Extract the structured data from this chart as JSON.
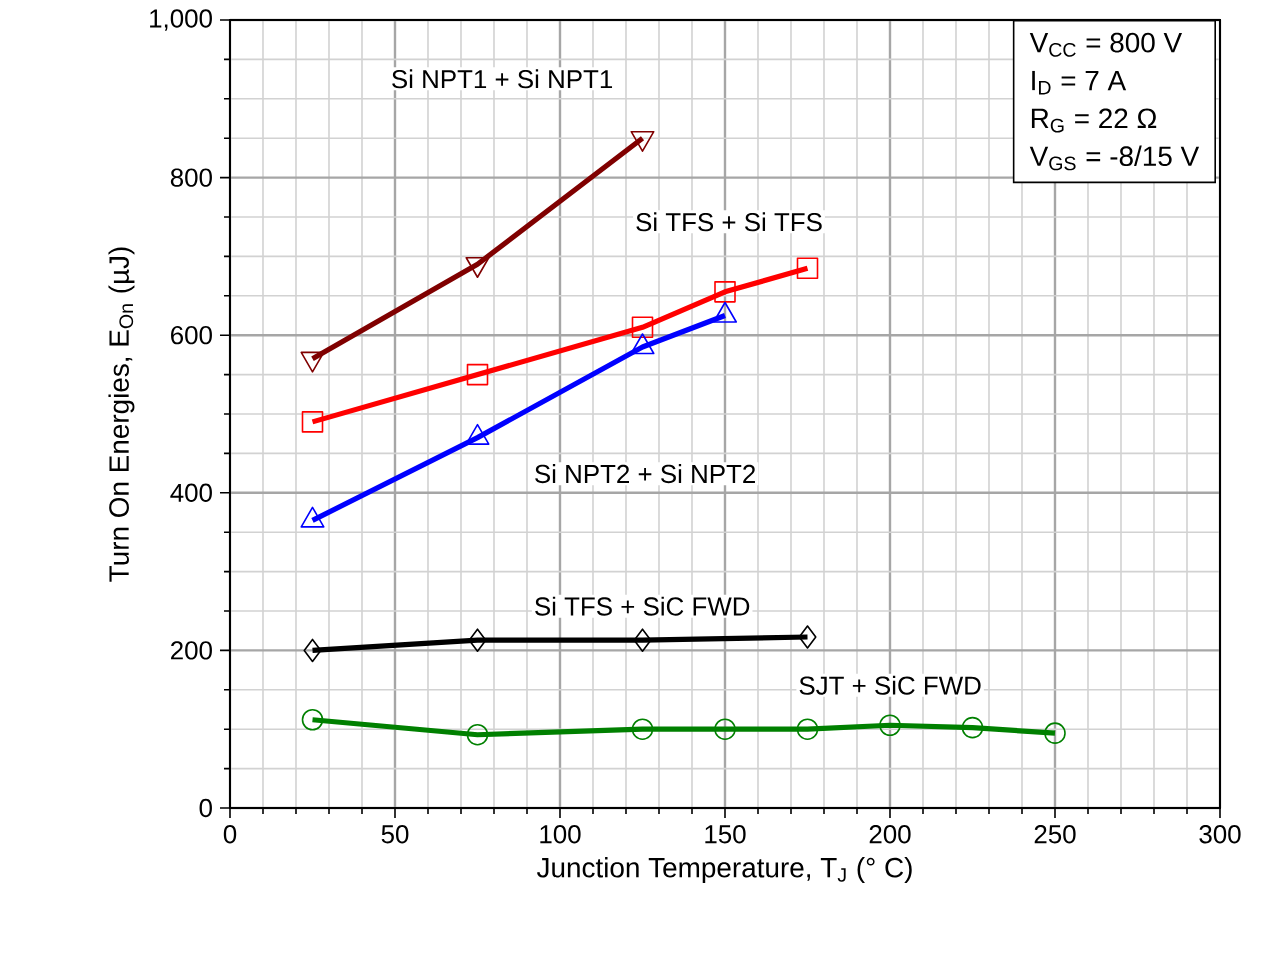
{
  "chart_data": {
    "type": "line",
    "xlabel": "Junction Temperature, T$_{J}$ (° C)",
    "ylabel": "Turn On Energies, E$_{On}$ (µJ)",
    "annotations": [
      "V$_{CC}$ = 800 V",
      "I$_{D}$ = 7 A",
      "R$_{G}$ = 22 Ω",
      "V$_{GS}$ = -8/15 V"
    ],
    "xlim": [
      0,
      300
    ],
    "ylim": [
      0,
      1000
    ],
    "xticks": [
      0,
      50,
      100,
      150,
      200,
      250,
      300
    ],
    "yticks": [
      0,
      200,
      400,
      600,
      800,
      {
        "value": 1000,
        "label": "1,000"
      }
    ],
    "grid": true,
    "legend": false,
    "series": [
      {
        "name": "Si NPT1 + Si NPT1",
        "color": "#800000",
        "marker": "triangle-down",
        "x": [
          25,
          75,
          125
        ],
        "values": [
          570,
          690,
          850
        ]
      },
      {
        "name": "Si TFS + Si TFS",
        "color": "#ff0000",
        "marker": "square",
        "x": [
          25,
          75,
          125,
          150,
          175
        ],
        "values": [
          490,
          550,
          610,
          655,
          685
        ]
      },
      {
        "name": "Si NPT2 + Si NPT2",
        "color": "#0000ff",
        "marker": "triangle",
        "x": [
          25,
          75,
          125,
          150
        ],
        "values": [
          365,
          470,
          585,
          625
        ]
      },
      {
        "name": "Si TFS + SiC FWD",
        "color": "#000000",
        "marker": "diamond",
        "x": [
          25,
          75,
          125,
          175
        ],
        "values": [
          200,
          213,
          213,
          217
        ]
      },
      {
        "name": "SJT + SiC FWD",
        "color": "#008000",
        "marker": "circle",
        "x": [
          25,
          75,
          125,
          150,
          175,
          200,
          225,
          250
        ],
        "values": [
          112,
          93,
          100,
          100,
          100,
          105,
          102,
          95
        ]
      }
    ]
  }
}
